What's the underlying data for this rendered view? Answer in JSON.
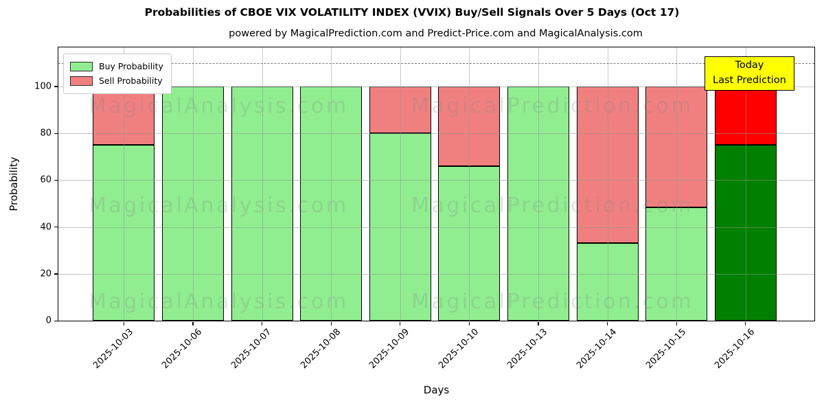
{
  "chart_data": {
    "type": "bar",
    "stacked": true,
    "title": "Probabilities of CBOE VIX VOLATILITY INDEX (VVIX) Buy/Sell Signals Over 5 Days (Oct 17)",
    "subtitle": "powered by MagicalPrediction.com and Predict-Price.com and MagicalAnalysis.com",
    "xlabel": "Days",
    "ylabel": "Probability",
    "ylim": [
      0,
      116.7
    ],
    "yticks": [
      0,
      20,
      40,
      60,
      80,
      100
    ],
    "grid": true,
    "dashed_reference_line_y": 110,
    "categories": [
      "2025-10-03",
      "2025-10-06",
      "2025-10-07",
      "2025-10-08",
      "2025-10-09",
      "2025-10-10",
      "2025-10-13",
      "2025-10-14",
      "2025-10-15",
      "2025-10-16"
    ],
    "series": [
      {
        "name": "Buy Probability",
        "color": "#90ee90",
        "values": [
          75,
          100,
          100,
          100,
          80,
          66,
          100,
          33,
          48.5,
          75
        ]
      },
      {
        "name": "Sell Probability",
        "color": "#f08080",
        "values": [
          25,
          0,
          0,
          0,
          20,
          34,
          0,
          67,
          51.5,
          25
        ]
      }
    ],
    "today_bar": {
      "index": 9,
      "buy_color": "#008000",
      "sell_color": "#ff0000"
    },
    "legend": {
      "position": "upper left",
      "items": [
        {
          "label": "Buy Probability",
          "color": "#90ee90"
        },
        {
          "label": "Sell Probability",
          "color": "#f08080"
        }
      ]
    },
    "annotation_box": {
      "lines": [
        "Today",
        "Last Prediction"
      ],
      "bg_color": "#ffff00",
      "border_color": "#000000"
    },
    "watermarks": {
      "left_text": "MagicalAnalysis.com",
      "right_text": "MagicalPrediction.com"
    },
    "axis_colors": {
      "bar_edge": "#000000",
      "grid": "#b0b0b0",
      "dashed_line": "#777777"
    }
  }
}
